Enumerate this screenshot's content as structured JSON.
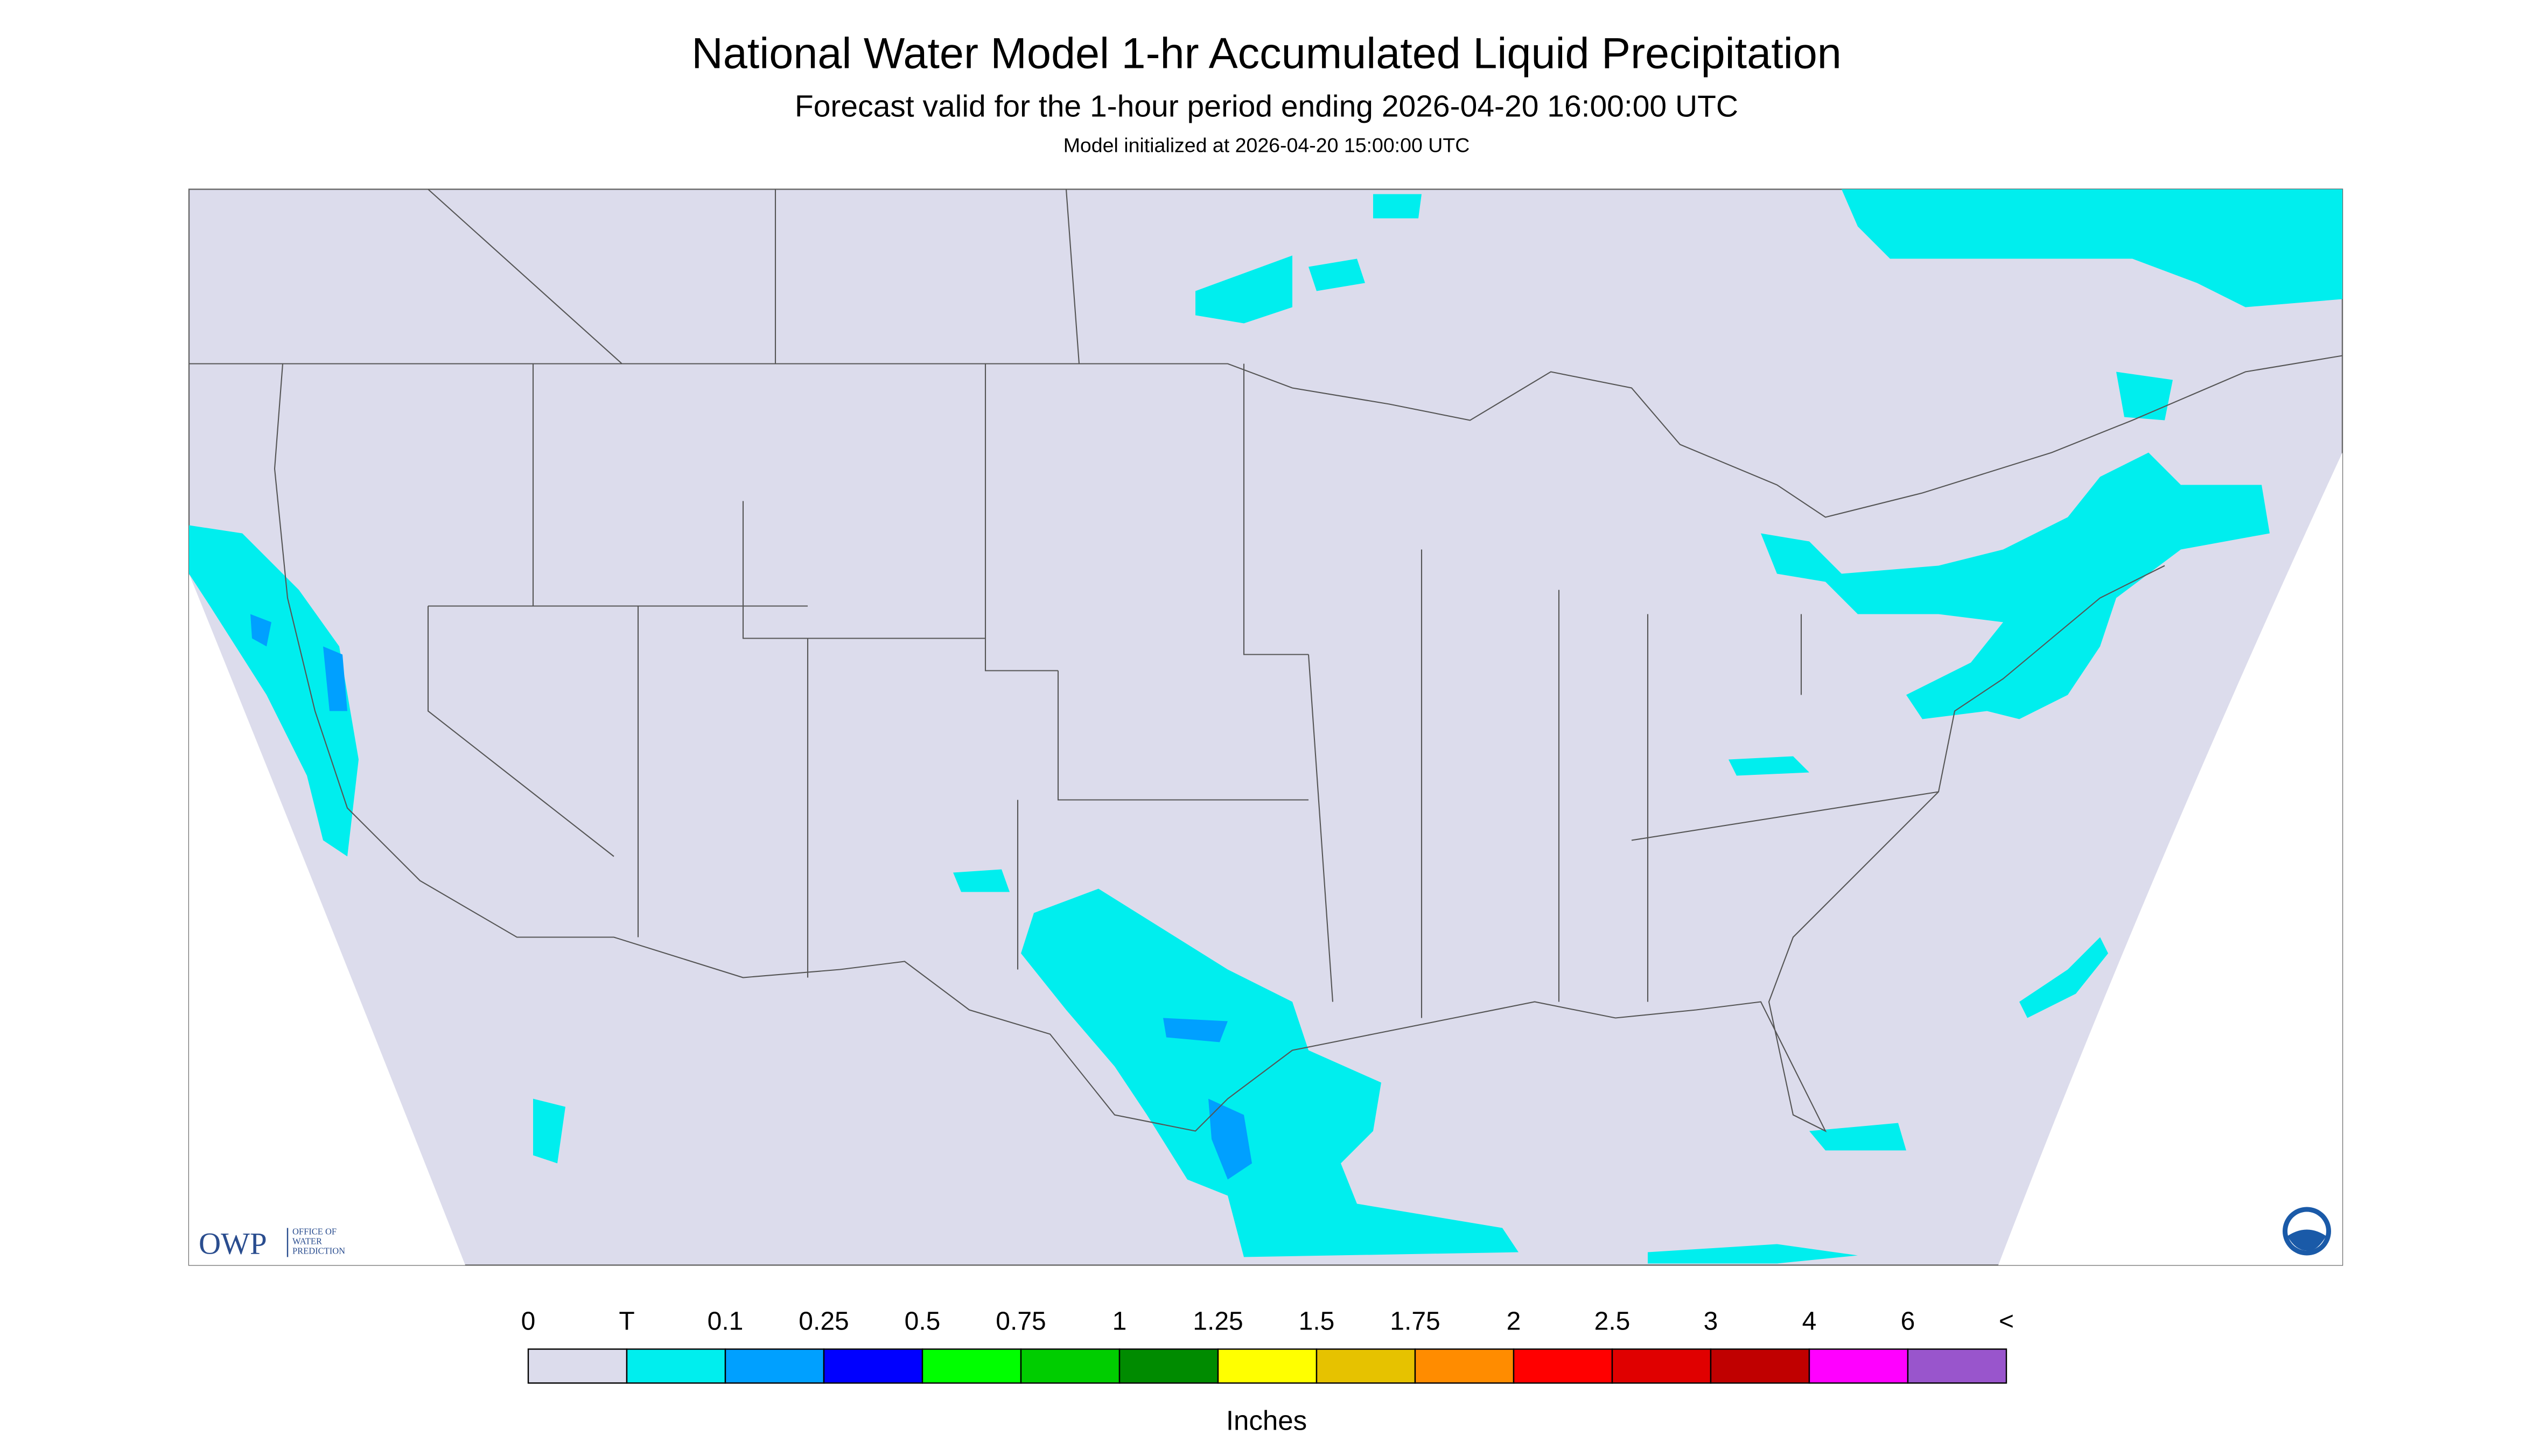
{
  "header": {
    "title": "National Water Model 1-hr Accumulated Liquid Precipitation",
    "subtitle": "Forecast valid for the 1-hour period ending 2026-04-20 16:00:00 UTC",
    "initialized": "Model initialized at 2026-04-20 15:00:00 UTC"
  },
  "legend": {
    "labels": [
      "0",
      "T",
      "0.1",
      "0.25",
      "0.5",
      "0.75",
      "1",
      "1.25",
      "1.5",
      "1.75",
      "2",
      "2.5",
      "3",
      "4",
      "6",
      "<"
    ],
    "colors": [
      "#dcdcec",
      "#00eeee",
      "#00a0ff",
      "#0000ff",
      "#00ff00",
      "#00cd00",
      "#008b00",
      "#ffff00",
      "#e6c200",
      "#ff8c00",
      "#ff0000",
      "#e00000",
      "#c00000",
      "#ff00ff",
      "#9955cc"
    ],
    "unit": "Inches"
  },
  "logo": {
    "abbr": "OWP",
    "lines": [
      "OFFICE OF",
      "WATER",
      "PREDICTION"
    ]
  }
}
